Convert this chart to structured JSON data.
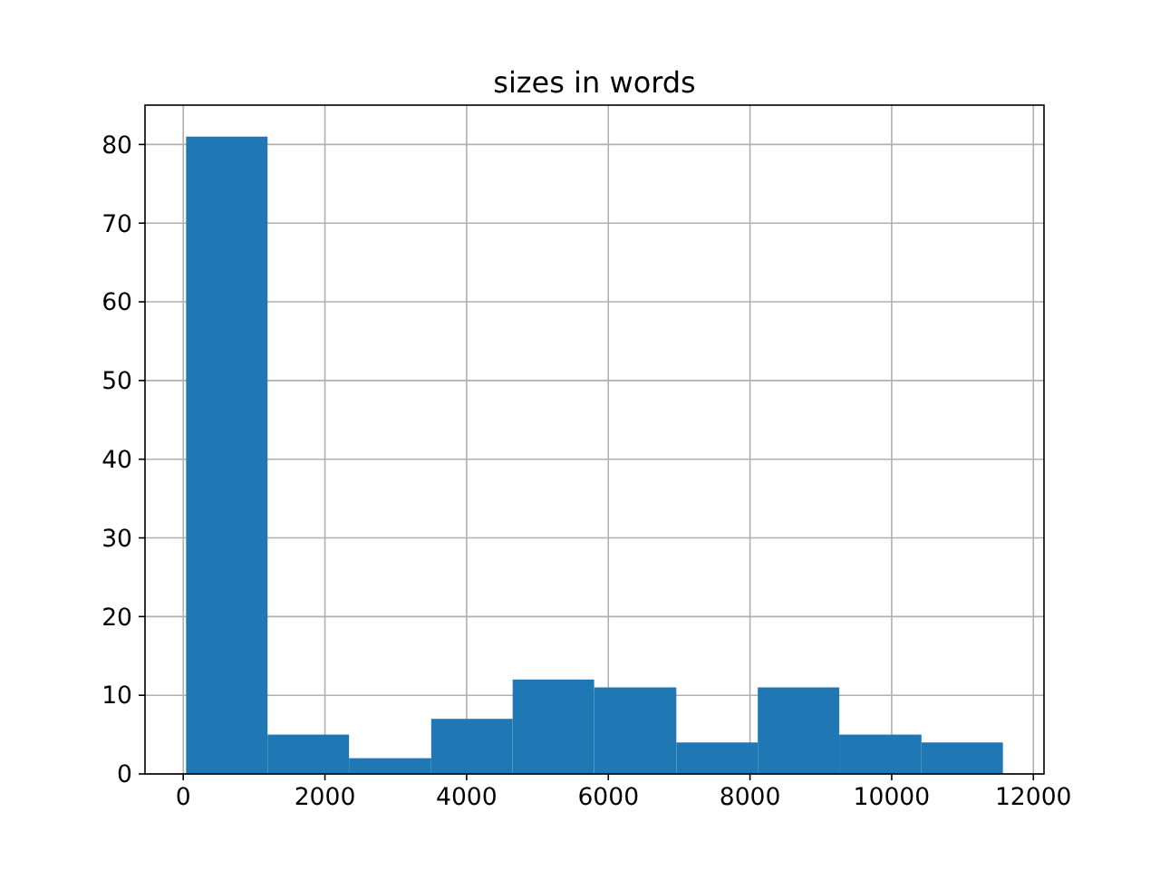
{
  "chart_data": {
    "type": "histogram",
    "title": "sizes in words",
    "bins": [
      40,
      1190,
      2340,
      3500,
      4650,
      5800,
      6960,
      8110,
      9260,
      10420,
      11570
    ],
    "values": [
      81,
      5,
      2,
      7,
      12,
      11,
      4,
      11,
      5,
      4
    ],
    "color": "#1f77b4",
    "xlim": [
      -540,
      12150
    ],
    "xticks": [
      0,
      2000,
      4000,
      6000,
      8000,
      10000,
      12000
    ],
    "ylim": [
      0,
      85
    ],
    "yticks": [
      0,
      10,
      20,
      30,
      40,
      50,
      60,
      70,
      80
    ],
    "grid": true
  }
}
